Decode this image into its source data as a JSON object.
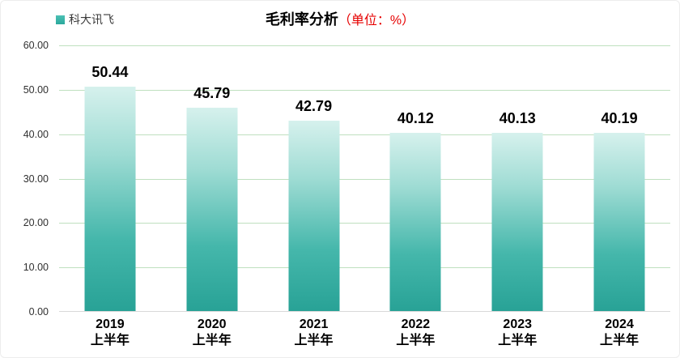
{
  "header": {
    "legend": {
      "label": "科大讯飞",
      "swatch_color": "#35b1a5"
    },
    "title": {
      "main": "毛利率分析",
      "unit": "（单位：%）",
      "unit_color": "#e60000"
    }
  },
  "chart_data": {
    "type": "bar",
    "title": "毛利率分析（单位：%）",
    "legend": [
      "科大讯飞"
    ],
    "legend_position": "top-left",
    "categories": [
      {
        "line1": "2019",
        "line2": "上半年"
      },
      {
        "line1": "2020",
        "line2": "上半年"
      },
      {
        "line1": "2021",
        "line2": "上半年"
      },
      {
        "line1": "2022",
        "line2": "上半年"
      },
      {
        "line1": "2023",
        "line2": "上半年"
      },
      {
        "line1": "2024",
        "line2": "上半年"
      }
    ],
    "series": [
      {
        "name": "科大讯飞",
        "values": [
          50.44,
          45.79,
          42.79,
          40.12,
          40.13,
          40.19
        ]
      }
    ],
    "value_labels": [
      "50.44",
      "45.79",
      "42.79",
      "40.12",
      "40.13",
      "40.19"
    ],
    "ylabel": "",
    "xlabel": "",
    "ylim": [
      0,
      60
    ],
    "ytick_labels": [
      "60.00",
      "50.00",
      "40.00",
      "30.00",
      "20.00",
      "10.00",
      "0.00"
    ],
    "grid": true,
    "colors": {
      "bar_gradient_top": "#d6f1ed",
      "bar_gradient_bottom": "#28a296",
      "gridline": "#bfe0bf",
      "axis_line": "#d9d9d9"
    }
  }
}
